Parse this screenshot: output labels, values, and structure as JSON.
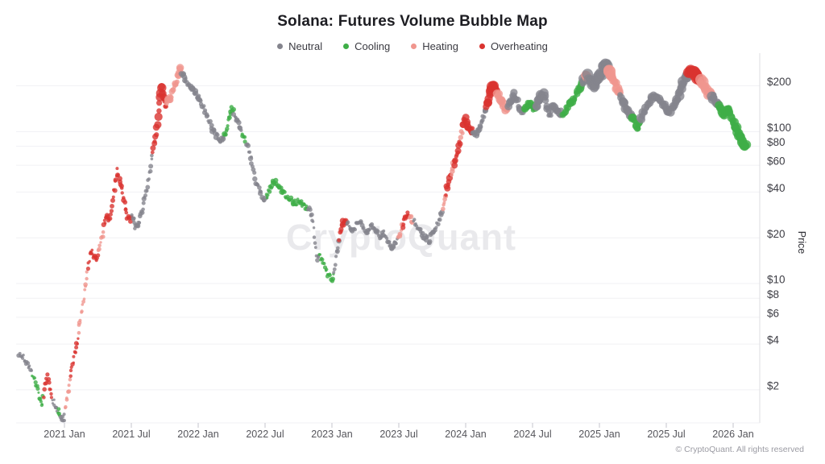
{
  "chart_data": {
    "type": "scatter",
    "title": "Solana: Futures Volume Bubble Map",
    "watermark": "CryptoQuant",
    "ylabel": "Price",
    "y_scale": "log",
    "x_range": [
      2020.62,
      2026.2
    ],
    "y_range": [
      1.0,
      300
    ],
    "grid": "horizontal-only",
    "legend_position": "top-center",
    "legend": [
      {
        "label": "Neutral",
        "color": "#84848d"
      },
      {
        "label": "Cooling",
        "color": "#3eae47"
      },
      {
        "label": "Heating",
        "color": "#f0968e"
      },
      {
        "label": "Overheating",
        "color": "#da332f"
      }
    ],
    "x_ticks": [
      {
        "label": "2021 Jan",
        "t": 2021.0
      },
      {
        "label": "2021 Jul",
        "t": 2021.5
      },
      {
        "label": "2022 Jan",
        "t": 2022.0
      },
      {
        "label": "2022 Jul",
        "t": 2022.5
      },
      {
        "label": "2023 Jan",
        "t": 2023.0
      },
      {
        "label": "2023 Jul",
        "t": 2023.5
      },
      {
        "label": "2024 Jan",
        "t": 2024.0
      },
      {
        "label": "2024 Jul",
        "t": 2024.5
      },
      {
        "label": "2025 Jan",
        "t": 2025.0
      },
      {
        "label": "2025 Jul",
        "t": 2025.5
      },
      {
        "label": "2026 Jan",
        "t": 2026.0
      }
    ],
    "y_ticks": [
      200,
      100,
      80,
      60,
      40,
      20,
      10,
      8,
      6,
      4,
      2
    ],
    "y_tick_prefix": "$",
    "price_path": [
      [
        2020.66,
        3.5,
        0,
        2.4
      ],
      [
        2020.7,
        3.2,
        0,
        2.4
      ],
      [
        2020.74,
        2.8,
        0,
        2.4
      ],
      [
        2020.77,
        2.4,
        1,
        2.4
      ],
      [
        2020.8,
        1.95,
        1,
        2.4
      ],
      [
        2020.83,
        1.55,
        1,
        2.4
      ],
      [
        2020.855,
        2.1,
        3,
        2.5
      ],
      [
        2020.875,
        2.45,
        3,
        2.5
      ],
      [
        2020.895,
        1.95,
        3,
        2.5
      ],
      [
        2020.915,
        1.7,
        0,
        2.4
      ],
      [
        2020.935,
        1.5,
        0,
        2.4
      ],
      [
        2020.955,
        1.45,
        1,
        2.4
      ],
      [
        2020.975,
        1.3,
        0,
        2.4
      ],
      [
        2020.995,
        1.25,
        0,
        2.4
      ],
      [
        2021.01,
        1.6,
        2,
        2.4
      ],
      [
        2021.03,
        2.0,
        2,
        2.4
      ],
      [
        2021.05,
        2.6,
        3,
        2.5
      ],
      [
        2021.07,
        3.3,
        3,
        2.5
      ],
      [
        2021.09,
        3.9,
        3,
        2.5
      ],
      [
        2021.11,
        5.2,
        2,
        2.5
      ],
      [
        2021.13,
        6.8,
        2,
        2.5
      ],
      [
        2021.15,
        8.8,
        2,
        2.5
      ],
      [
        2021.165,
        11,
        2,
        2.5
      ],
      [
        2021.18,
        14,
        3,
        2.7
      ],
      [
        2021.2,
        16.5,
        3,
        2.7
      ],
      [
        2021.22,
        15,
        3,
        2.7
      ],
      [
        2021.24,
        14,
        3,
        2.7
      ],
      [
        2021.26,
        17,
        2,
        2.6
      ],
      [
        2021.28,
        20,
        2,
        2.6
      ],
      [
        2021.3,
        25,
        3,
        2.8
      ],
      [
        2021.32,
        28,
        3,
        2.8
      ],
      [
        2021.34,
        26,
        3,
        2.8
      ],
      [
        2021.36,
        34,
        3,
        2.9
      ],
      [
        2021.38,
        46,
        3,
        3
      ],
      [
        2021.395,
        55,
        3,
        3
      ],
      [
        2021.41,
        49,
        3,
        3
      ],
      [
        2021.43,
        42,
        3,
        3
      ],
      [
        2021.45,
        34,
        3,
        2.9
      ],
      [
        2021.47,
        28,
        3,
        2.9
      ],
      [
        2021.49,
        26,
        3,
        2.8
      ],
      [
        2021.51,
        28,
        0,
        2.8
      ],
      [
        2021.53,
        24,
        0,
        2.8
      ],
      [
        2021.55,
        23,
        0,
        2.8
      ],
      [
        2021.57,
        28,
        0,
        2.8
      ],
      [
        2021.59,
        33,
        0,
        2.8
      ],
      [
        2021.61,
        40,
        0,
        2.8
      ],
      [
        2021.63,
        50,
        0,
        2.9
      ],
      [
        2021.65,
        65,
        0,
        2.9
      ],
      [
        2021.665,
        78,
        3,
        3.6
      ],
      [
        2021.68,
        92,
        3,
        4
      ],
      [
        2021.695,
        115,
        3,
        4.6
      ],
      [
        2021.71,
        150,
        3,
        5.2
      ],
      [
        2021.725,
        195,
        3,
        5.8
      ],
      [
        2021.74,
        170,
        3,
        4.8
      ],
      [
        2021.755,
        148,
        3,
        4.2
      ],
      [
        2021.77,
        155,
        2,
        3.8
      ],
      [
        2021.79,
        165,
        2,
        3.8
      ],
      [
        2021.81,
        180,
        2,
        4
      ],
      [
        2021.83,
        205,
        2,
        4.2
      ],
      [
        2021.85,
        235,
        2,
        4.6
      ],
      [
        2021.865,
        258,
        2,
        4.8
      ],
      [
        2021.88,
        243,
        0,
        3.4
      ],
      [
        2021.9,
        225,
        0,
        3.2
      ],
      [
        2021.92,
        210,
        0,
        3.2
      ],
      [
        2021.94,
        198,
        0,
        3.2
      ],
      [
        2021.96,
        188,
        0,
        3.2
      ],
      [
        2021.98,
        178,
        0,
        3.2
      ],
      [
        2022.0,
        168,
        0,
        3.2
      ],
      [
        2022.03,
        150,
        0,
        3.2
      ],
      [
        2022.06,
        130,
        0,
        3.1
      ],
      [
        2022.09,
        112,
        0,
        3.1
      ],
      [
        2022.12,
        98,
        0,
        3
      ],
      [
        2022.15,
        90,
        0,
        3
      ],
      [
        2022.18,
        86,
        0,
        3
      ],
      [
        2022.205,
        100,
        1,
        3
      ],
      [
        2022.23,
        122,
        1,
        3
      ],
      [
        2022.25,
        139,
        1,
        3
      ],
      [
        2022.28,
        126,
        0,
        3
      ],
      [
        2022.31,
        108,
        0,
        3
      ],
      [
        2022.34,
        92,
        1,
        2.9
      ],
      [
        2022.37,
        80,
        0,
        2.9
      ],
      [
        2022.4,
        62,
        0,
        2.9
      ],
      [
        2022.43,
        47,
        0,
        2.9
      ],
      [
        2022.46,
        42,
        0,
        2.9
      ],
      [
        2022.49,
        36,
        0,
        2.9
      ],
      [
        2022.52,
        39,
        1,
        2.9
      ],
      [
        2022.55,
        45,
        1,
        2.9
      ],
      [
        2022.58,
        46,
        1,
        2.9
      ],
      [
        2022.61,
        42,
        1,
        2.8
      ],
      [
        2022.64,
        40,
        1,
        2.8
      ],
      [
        2022.68,
        36,
        1,
        2.8
      ],
      [
        2022.72,
        34,
        1,
        2.8
      ],
      [
        2022.76,
        35,
        1,
        2.8
      ],
      [
        2022.8,
        32,
        1,
        2.8
      ],
      [
        2022.84,
        30,
        0,
        2.7
      ],
      [
        2022.86,
        25,
        0,
        2.7
      ],
      [
        2022.875,
        18,
        0,
        2.7
      ],
      [
        2022.89,
        14.5,
        0,
        2.7
      ],
      [
        2022.91,
        15,
        1,
        2.7
      ],
      [
        2022.94,
        13,
        1,
        2.7
      ],
      [
        2022.97,
        11.5,
        1,
        2.7
      ],
      [
        2023.0,
        10.8,
        1,
        2.7
      ],
      [
        2023.02,
        12.5,
        0,
        2.7
      ],
      [
        2023.04,
        17,
        0,
        2.8
      ],
      [
        2023.06,
        21,
        3,
        3.4
      ],
      [
        2023.08,
        25,
        3,
        3.6
      ],
      [
        2023.1,
        27,
        3,
        3.4
      ],
      [
        2023.12,
        25,
        0,
        2.8
      ],
      [
        2023.15,
        22,
        0,
        2.8
      ],
      [
        2023.18,
        24,
        0,
        2.8
      ],
      [
        2023.21,
        26,
        0,
        2.8
      ],
      [
        2023.24,
        23,
        0,
        2.8
      ],
      [
        2023.27,
        22,
        0,
        2.8
      ],
      [
        2023.3,
        24,
        0,
        2.8
      ],
      [
        2023.33,
        22,
        0,
        2.8
      ],
      [
        2023.36,
        20.5,
        0,
        2.8
      ],
      [
        2023.39,
        21.5,
        0,
        2.8
      ],
      [
        2023.42,
        18.5,
        0,
        2.8
      ],
      [
        2023.45,
        17,
        0,
        2.8
      ],
      [
        2023.48,
        19,
        0,
        2.8
      ],
      [
        2023.51,
        22,
        2,
        3
      ],
      [
        2023.54,
        26,
        3,
        3.4
      ],
      [
        2023.565,
        29,
        3,
        3.4
      ],
      [
        2023.59,
        27,
        2,
        3
      ],
      [
        2023.62,
        25,
        0,
        2.8
      ],
      [
        2023.65,
        23,
        0,
        2.8
      ],
      [
        2023.69,
        20.5,
        0,
        2.8
      ],
      [
        2023.72,
        19,
        0,
        2.8
      ],
      [
        2023.75,
        21,
        0,
        2.9
      ],
      [
        2023.78,
        24,
        0,
        2.9
      ],
      [
        2023.81,
        28,
        0,
        3
      ],
      [
        2023.84,
        34,
        2,
        3.2
      ],
      [
        2023.86,
        42,
        3,
        3.6
      ],
      [
        2023.88,
        48,
        3,
        3.8
      ],
      [
        2023.9,
        56,
        2,
        3.4
      ],
      [
        2023.92,
        63,
        3,
        3.8
      ],
      [
        2023.94,
        71,
        3,
        3.8
      ],
      [
        2023.955,
        82,
        3,
        4
      ],
      [
        2023.97,
        96,
        2,
        3.6
      ],
      [
        2023.985,
        112,
        3,
        4.6
      ],
      [
        2024.0,
        122,
        3,
        5
      ],
      [
        2024.02,
        106,
        3,
        4.6
      ],
      [
        2024.04,
        100,
        3,
        4.2
      ],
      [
        2024.06,
        102,
        0,
        3.4
      ],
      [
        2024.08,
        94,
        0,
        3.4
      ],
      [
        2024.1,
        106,
        0,
        3.4
      ],
      [
        2024.12,
        117,
        0,
        3.6
      ],
      [
        2024.14,
        133,
        0,
        3.8
      ],
      [
        2024.16,
        148,
        3,
        5
      ],
      [
        2024.18,
        172,
        3,
        6
      ],
      [
        2024.2,
        198,
        3,
        6.6
      ],
      [
        2024.22,
        192,
        3,
        6.2
      ],
      [
        2024.24,
        175,
        2,
        5.2
      ],
      [
        2024.27,
        155,
        2,
        5
      ],
      [
        2024.3,
        137,
        2,
        4.6
      ],
      [
        2024.33,
        152,
        0,
        4.4
      ],
      [
        2024.36,
        175,
        0,
        4.6
      ],
      [
        2024.39,
        157,
        0,
        4.4
      ],
      [
        2024.42,
        132,
        0,
        4.2
      ],
      [
        2024.45,
        142,
        1,
        4.2
      ],
      [
        2024.48,
        153,
        1,
        4.4
      ],
      [
        2024.51,
        142,
        1,
        4.2
      ],
      [
        2024.54,
        155,
        0,
        5
      ],
      [
        2024.57,
        180,
        0,
        5.6
      ],
      [
        2024.6,
        160,
        0,
        5
      ],
      [
        2024.625,
        124,
        0,
        4.4
      ],
      [
        2024.65,
        147,
        0,
        4.6
      ],
      [
        2024.68,
        140,
        0,
        4.4
      ],
      [
        2024.71,
        130,
        0,
        4.2
      ],
      [
        2024.74,
        137,
        1,
        4.4
      ],
      [
        2024.77,
        150,
        1,
        4.6
      ],
      [
        2024.8,
        163,
        1,
        4.6
      ],
      [
        2024.83,
        178,
        1,
        4.8
      ],
      [
        2024.86,
        198,
        1,
        5
      ],
      [
        2024.88,
        218,
        0,
        6.4
      ],
      [
        2024.9,
        240,
        2,
        6.6
      ],
      [
        2024.92,
        228,
        0,
        6.6
      ],
      [
        2024.94,
        214,
        0,
        6.4
      ],
      [
        2024.96,
        202,
        0,
        6.2
      ],
      [
        2024.98,
        212,
        0,
        6.6
      ],
      [
        2025.0,
        228,
        0,
        7
      ],
      [
        2025.03,
        258,
        0,
        7.6
      ],
      [
        2025.055,
        276,
        0,
        7.6
      ],
      [
        2025.08,
        242,
        2,
        6.6
      ],
      [
        2025.11,
        210,
        2,
        6.2
      ],
      [
        2025.14,
        188,
        2,
        5.8
      ],
      [
        2025.17,
        162,
        0,
        5.6
      ],
      [
        2025.2,
        142,
        0,
        5.4
      ],
      [
        2025.23,
        128,
        0,
        5.2
      ],
      [
        2025.26,
        118,
        1,
        5.2
      ],
      [
        2025.29,
        107,
        1,
        5.4
      ],
      [
        2025.32,
        126,
        0,
        4.8
      ],
      [
        2025.35,
        144,
        0,
        4.8
      ],
      [
        2025.38,
        163,
        0,
        5
      ],
      [
        2025.41,
        177,
        0,
        5
      ],
      [
        2025.44,
        167,
        0,
        4.8
      ],
      [
        2025.47,
        154,
        0,
        4.8
      ],
      [
        2025.5,
        142,
        0,
        4.8
      ],
      [
        2025.53,
        134,
        0,
        4.8
      ],
      [
        2025.56,
        150,
        0,
        5
      ],
      [
        2025.59,
        173,
        0,
        5.4
      ],
      [
        2025.62,
        202,
        0,
        5.8
      ],
      [
        2025.65,
        228,
        0,
        6.2
      ],
      [
        2025.67,
        245,
        3,
        7
      ],
      [
        2025.695,
        250,
        3,
        7.6
      ],
      [
        2025.72,
        235,
        3,
        7.2
      ],
      [
        2025.74,
        222,
        3,
        6.8
      ],
      [
        2025.76,
        212,
        2,
        6.8
      ],
      [
        2025.79,
        196,
        2,
        6.6
      ],
      [
        2025.82,
        178,
        2,
        6
      ],
      [
        2025.85,
        167,
        0,
        5.4
      ],
      [
        2025.875,
        155,
        0,
        5.2
      ],
      [
        2025.9,
        146,
        1,
        5.2
      ],
      [
        2025.93,
        130,
        1,
        5.4
      ],
      [
        2025.955,
        140,
        1,
        5.2
      ],
      [
        2025.98,
        132,
        1,
        5.2
      ],
      [
        2026.005,
        115,
        1,
        5.4
      ],
      [
        2026.03,
        101,
        1,
        5.6
      ],
      [
        2026.055,
        91,
        1,
        5.8
      ],
      [
        2026.08,
        84,
        1,
        5.8
      ],
      [
        2026.1,
        82,
        1,
        5.6
      ]
    ]
  },
  "footer": {
    "copyright": "© CryptoQuant. All rights reserved"
  },
  "colors": {
    "grid": "#f1f1f4",
    "axis_border": "#dcdce0",
    "tick": "#c6c6cc",
    "x_label": "#55555b",
    "y_label": "#3d3d44",
    "axis_title": "#2e2e34",
    "watermark": "#e9e9ec"
  }
}
